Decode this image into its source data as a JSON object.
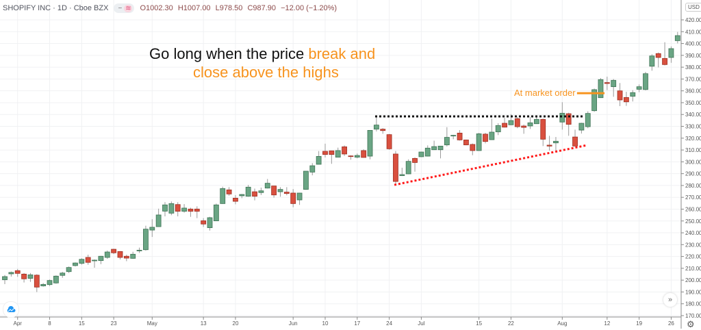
{
  "header": {
    "symbol_title": "SHOPIFY INC · 1D · Cboe BZX",
    "btn_minus": "−",
    "btn_wave": "≋",
    "open": "O1002.30",
    "high": "H1007.00",
    "low": "L978.50",
    "close": "C987.90",
    "change": "−12.00 (−1.20%)"
  },
  "annotation": {
    "line1_black": "Go long when the price ",
    "line1_orange": "break and",
    "line2_orange": "close above the highs",
    "market_order": "At market order"
  },
  "price_axis": {
    "currency": "USD"
  },
  "icons": {
    "logo": "tradingview-cloud-icon",
    "scroll": "double-chevron-right-icon",
    "settings": "gear-icon"
  },
  "colors": {
    "up": "#6aa584",
    "up_border": "#3f7355",
    "down": "#d9503f",
    "down_border": "#9d2f22",
    "orange": "#f7931e",
    "resistance": "#111111",
    "trendline": "#ff1a1a"
  },
  "chart_data": {
    "type": "candlestick",
    "title": "",
    "ylim": [
      170,
      420
    ],
    "y_ticks": [
      170,
      180,
      190,
      200,
      210,
      220,
      230,
      240,
      250,
      260,
      270,
      280,
      290,
      300,
      310,
      320,
      330,
      340,
      350,
      360,
      370,
      380,
      390,
      400,
      410,
      420
    ],
    "grid": true,
    "x_ticks": [
      {
        "label": "Apr",
        "bar": 2
      },
      {
        "label": "8",
        "bar": 7
      },
      {
        "label": "15",
        "bar": 12
      },
      {
        "label": "23",
        "bar": 17
      },
      {
        "label": "May",
        "bar": 23
      },
      {
        "label": "13",
        "bar": 31
      },
      {
        "label": "20",
        "bar": 36
      },
      {
        "label": "Jun",
        "bar": 45
      },
      {
        "label": "10",
        "bar": 50
      },
      {
        "label": "17",
        "bar": 55
      },
      {
        "label": "24",
        "bar": 60
      },
      {
        "label": "Jul",
        "bar": 65
      },
      {
        "label": "15",
        "bar": 74
      },
      {
        "label": "22",
        "bar": 79
      },
      {
        "label": "Aug",
        "bar": 87
      },
      {
        "label": "12",
        "bar": 94
      },
      {
        "label": "19",
        "bar": 99
      },
      {
        "label": "26",
        "bar": 104
      }
    ],
    "ohlc_fields": [
      "open",
      "high",
      "low",
      "close"
    ],
    "candles": [
      [
        200.3,
        204.3,
        196.6,
        203.0
      ],
      [
        205.3,
        207.3,
        203,
        206.5
      ],
      [
        208,
        209.5,
        202.8,
        205.7
      ],
      [
        205.1,
        206,
        198,
        201.1
      ],
      [
        201.5,
        206,
        198.5,
        204.5
      ],
      [
        204.2,
        205,
        189.9,
        194.1
      ],
      [
        195.1,
        197.5,
        194.5,
        196.4
      ],
      [
        196.2,
        200.5,
        195,
        199.7
      ],
      [
        197.6,
        204,
        197,
        203.4
      ],
      [
        204,
        207,
        202,
        206
      ],
      [
        207.2,
        211.5,
        206,
        210.7
      ],
      [
        212.3,
        215,
        211.5,
        214.5
      ],
      [
        214.2,
        218.5,
        213,
        217.6
      ],
      [
        219.2,
        221.5,
        213,
        215
      ],
      [
        216.3,
        217.5,
        210.5,
        216.9
      ],
      [
        216.5,
        220.5,
        213.5,
        220.2
      ],
      [
        219.2,
        225,
        218,
        223.8
      ],
      [
        226.1,
        226.5,
        222,
        223.1
      ],
      [
        224.2,
        224.5,
        217.5,
        219.2
      ],
      [
        220.2,
        221.5,
        216,
        218.6
      ],
      [
        218.4,
        224,
        218,
        221.9
      ],
      [
        224.8,
        227.5,
        223,
        225.3
      ],
      [
        225.7,
        246,
        225,
        243.1
      ],
      [
        242.3,
        251.5,
        236.5,
        244.7
      ],
      [
        245.2,
        260.4,
        245,
        255.1
      ],
      [
        258.3,
        265.9,
        253.9,
        263.6
      ],
      [
        256.6,
        266.5,
        254.9,
        264.7
      ],
      [
        263.9,
        265.9,
        253.9,
        258.2
      ],
      [
        258.2,
        264.3,
        257,
        260.9
      ],
      [
        260.1,
        261.2,
        253.5,
        258.2
      ],
      [
        260.1,
        262.4,
        252.4,
        258.2
      ],
      [
        250.2,
        252.4,
        245,
        247.4
      ],
      [
        244.3,
        253.5,
        241.9,
        252.8
      ],
      [
        250.1,
        264.7,
        250,
        263.6
      ],
      [
        264.7,
        279,
        264.5,
        277.4
      ],
      [
        276.3,
        278.6,
        271.3,
        272.8
      ],
      [
        269.3,
        271.9,
        264.1,
        266.6
      ],
      [
        271.3,
        272.8,
        269.3,
        272.4
      ],
      [
        270.9,
        280.5,
        270.5,
        278.6
      ],
      [
        274.7,
        277.4,
        267.4,
        270.9
      ],
      [
        274,
        278.2,
        271.9,
        275.5
      ],
      [
        277.8,
        285.5,
        277.5,
        281.9
      ],
      [
        279.6,
        279.8,
        269.7,
        272
      ],
      [
        274.7,
        278.6,
        270.5,
        276.7
      ],
      [
        274.4,
        278.6,
        271.7,
        273.2
      ],
      [
        273.6,
        277,
        261.6,
        264.7
      ],
      [
        267.8,
        273.8,
        263.6,
        273.6
      ],
      [
        276.7,
        292.1,
        276.3,
        292.1
      ],
      [
        291.3,
        298.9,
        288.6,
        296.7
      ],
      [
        297.9,
        309.1,
        297.8,
        304.6
      ],
      [
        308.9,
        315.3,
        303.7,
        306.2
      ],
      [
        309.3,
        309.5,
        298.3,
        306.2
      ],
      [
        303.9,
        312,
        303.7,
        309.5
      ],
      [
        312.7,
        313.9,
        305,
        306.6
      ],
      [
        305,
        305.5,
        301.8,
        304.5
      ],
      [
        303.9,
        307,
        302.9,
        305.4
      ],
      [
        309.5,
        310.6,
        303.5,
        303.7
      ],
      [
        304.8,
        326.6,
        302.1,
        326.6
      ],
      [
        327.6,
        338.8,
        325.7,
        331.1
      ],
      [
        327.6,
        328.5,
        323.7,
        326.4
      ],
      [
        323,
        323.5,
        310.2,
        311
      ],
      [
        306.6,
        309.1,
        280.5,
        283.4
      ],
      [
        288.3,
        295,
        288,
        289.2
      ],
      [
        289.8,
        302.1,
        289.5,
        300.4
      ],
      [
        302.9,
        303.7,
        291.7,
        299.4
      ],
      [
        304.3,
        308.5,
        304,
        308.3
      ],
      [
        304.8,
        313.9,
        304.5,
        311.6
      ],
      [
        310.2,
        317.9,
        310,
        312.9
      ],
      [
        310.2,
        313.5,
        302.9,
        313.3
      ],
      [
        314.3,
        329.3,
        313,
        320.7
      ],
      [
        322.2,
        322.8,
        319.1,
        322.4
      ],
      [
        324.3,
        326.8,
        318,
        318.5
      ],
      [
        318.5,
        318.8,
        314,
        314.3
      ],
      [
        314.7,
        315.5,
        305.6,
        309.5
      ],
      [
        309.5,
        324.5,
        309.3,
        323.7
      ],
      [
        323.4,
        324.5,
        315.6,
        317.2
      ],
      [
        318.7,
        336.5,
        318.5,
        325.1
      ],
      [
        325.3,
        332.6,
        322.6,
        330.7
      ],
      [
        332.6,
        337.2,
        329,
        329.3
      ],
      [
        331.3,
        340.3,
        331,
        334.9
      ],
      [
        336.5,
        338,
        328.4,
        329.7
      ],
      [
        330.3,
        331.5,
        323.7,
        329.1
      ],
      [
        330.3,
        338,
        327.8,
        333
      ],
      [
        332.2,
        338,
        332,
        335.9
      ],
      [
        335.9,
        336.5,
        313.3,
        319.1
      ],
      [
        314.1,
        322,
        309.5,
        313.3
      ],
      [
        316,
        321,
        309.5,
        317.4
      ],
      [
        333.6,
        350.4,
        327.2,
        341.1
      ],
      [
        340.7,
        341.5,
        322,
        331.7
      ],
      [
        321,
        327.2,
        313.3,
        313.3
      ],
      [
        326.8,
        333,
        323.9,
        332.6
      ],
      [
        329.7,
        342.7,
        328.4,
        340.9
      ],
      [
        343.2,
        361.9,
        342.3,
        361
      ],
      [
        354.2,
        370.8,
        354,
        369.5
      ],
      [
        367,
        372,
        360.6,
        366.2
      ],
      [
        363.5,
        370,
        355,
        368.9
      ],
      [
        360,
        366.6,
        347.1,
        352.3
      ],
      [
        354.4,
        359.2,
        347.3,
        350.7
      ],
      [
        355.4,
        360.6,
        351,
        358.5
      ],
      [
        361.3,
        365.4,
        358.9,
        363.5
      ],
      [
        361.1,
        376,
        360.5,
        374.5
      ],
      [
        380.8,
        390.9,
        377,
        389.5
      ],
      [
        391.5,
        392.4,
        379.8,
        388.2
      ],
      [
        387.4,
        401.1,
        381.5,
        382.2
      ],
      [
        388.2,
        397.6,
        383.7,
        395.7
      ],
      [
        402.4,
        409.8,
        400.1,
        406.7
      ],
      [
        405,
        407,
        394,
        394.3
      ]
    ],
    "overlays": [
      {
        "kind": "resistance-dotted",
        "from": {
          "bar": 57.8,
          "price": 338.4
        },
        "to": {
          "bar": 90.4,
          "price": 338.4
        }
      },
      {
        "kind": "trendline-dotted",
        "from": {
          "bar": 60.8,
          "price": 280.5
        },
        "to": {
          "bar": 90.9,
          "price": 314.1
        }
      },
      {
        "kind": "entry-line",
        "from": {
          "bar": 89.3,
          "price": 358
        },
        "to": {
          "bar": 93.6,
          "price": 358
        }
      }
    ]
  }
}
